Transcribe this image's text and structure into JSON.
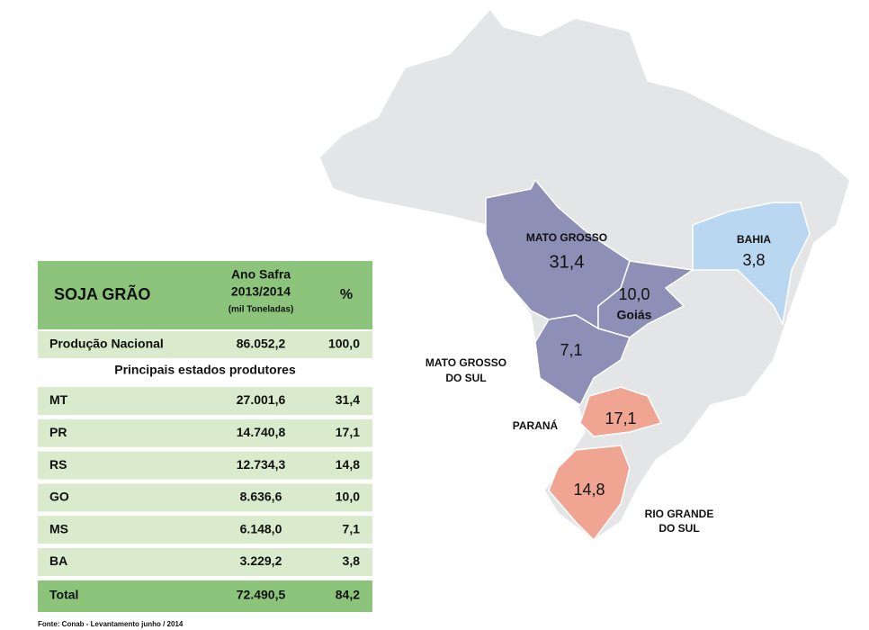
{
  "table": {
    "header": [
      "SOJA GRÃO",
      "Ano Safra",
      "2013/2014",
      "(mil Toneladas)",
      "%"
    ],
    "national": [
      "Produção Nacional",
      "86.052,2",
      "100,0"
    ],
    "subheading": "Principais estados produtores",
    "rows": [
      [
        "MT",
        "27.001,6",
        "31,4"
      ],
      [
        "PR",
        "14.740,8",
        "17,1"
      ],
      [
        "RS",
        "12.734,3",
        "14,8"
      ],
      [
        "GO",
        "8.636,6",
        "10,0"
      ],
      [
        "MS",
        "6.148,0",
        "7,1"
      ],
      [
        "BA",
        "3.229,2",
        "3,8"
      ]
    ],
    "total": [
      "Total",
      "72.490,5",
      "84,2"
    ]
  },
  "source": "Fonte: Conab - Levantamento junho / 2014",
  "map": {
    "states": [
      {
        "name": "MATO GROSSO",
        "value": "31,4"
      },
      {
        "name": "Goiás",
        "value": "10,0"
      },
      {
        "name": "MATO GROSSO",
        "name2": "DO SUL",
        "value": "7,1"
      },
      {
        "name": "BAHIA",
        "value": "3,8"
      },
      {
        "name": "PARANÁ",
        "value": "17,1"
      },
      {
        "name": "RIO GRANDE",
        "name2": "DO SUL",
        "value": "14,8"
      }
    ]
  }
}
